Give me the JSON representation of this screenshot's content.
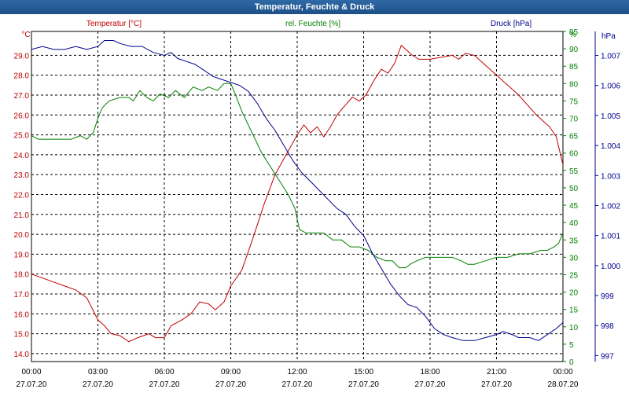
{
  "window": {
    "title": "Temperatur, Feuchte & Druck"
  },
  "chart_data": {
    "type": "line",
    "title": "Temperatur, Feuchte & Druck",
    "grid": true,
    "x_ticks": [
      {
        "time": "00:00",
        "date": "27.07.20"
      },
      {
        "time": "03:00",
        "date": "27.07.20"
      },
      {
        "time": "06:00",
        "date": "27.07.20"
      },
      {
        "time": "09:00",
        "date": "27.07.20"
      },
      {
        "time": "12:00",
        "date": "27.07.20"
      },
      {
        "time": "15:00",
        "date": "27.07.20"
      },
      {
        "time": "18:00",
        "date": "27.07.20"
      },
      {
        "time": "21:00",
        "date": "27.07.20"
      },
      {
        "time": "00:00",
        "date": "28.07.20"
      }
    ],
    "xlim_hours": [
      0,
      24
    ],
    "axes": {
      "temperature": {
        "label": "Temperatur [°C]",
        "unit": "°C",
        "color": "#c00000",
        "ylim": [
          13.6,
          30.2
        ],
        "ticks": [
          "14.0",
          "15.0",
          "16.0",
          "17.0",
          "18.0",
          "19.0",
          "20.0",
          "21.0",
          "22.0",
          "23.0",
          "24.0",
          "25.0",
          "26.0",
          "27.0",
          "28.0",
          "29.0"
        ]
      },
      "humidity": {
        "label": "rel. Feuchte [%]",
        "unit": "%",
        "color": "#008000",
        "ylim": [
          0,
          95
        ],
        "ticks": [
          "0",
          "5",
          "10",
          "15",
          "20",
          "25",
          "30",
          "35",
          "40",
          "45",
          "50",
          "55",
          "60",
          "65",
          "70",
          "75",
          "80",
          "85",
          "90",
          "95"
        ]
      },
      "pressure": {
        "label": "Druck [hPa]",
        "unit": "hPa",
        "color": "#00008b",
        "ylim": [
          996.8,
          1007.8
        ],
        "ticks": [
          "997",
          "998",
          "999",
          "1.000",
          "1.001",
          "1.002",
          "1.003",
          "1.004",
          "1.005",
          "1.006",
          "1.007"
        ]
      }
    },
    "series": [
      {
        "name": "Temperatur [°C]",
        "axis": "temperature",
        "color": "#c00000",
        "points": [
          [
            0,
            18.0
          ],
          [
            0.5,
            17.8
          ],
          [
            1,
            17.6
          ],
          [
            1.5,
            17.4
          ],
          [
            2,
            17.2
          ],
          [
            2.5,
            16.8
          ],
          [
            3,
            15.7
          ],
          [
            3.3,
            15.4
          ],
          [
            3.6,
            15.0
          ],
          [
            4,
            14.9
          ],
          [
            4.4,
            14.6
          ],
          [
            4.8,
            14.8
          ],
          [
            5.3,
            15.0
          ],
          [
            5.6,
            14.8
          ],
          [
            6,
            14.8
          ],
          [
            6.3,
            15.4
          ],
          [
            6.8,
            15.7
          ],
          [
            7.2,
            16.0
          ],
          [
            7.6,
            16.6
          ],
          [
            8,
            16.5
          ],
          [
            8.3,
            16.2
          ],
          [
            8.7,
            16.6
          ],
          [
            9,
            17.4
          ],
          [
            9.5,
            18.2
          ],
          [
            10,
            19.8
          ],
          [
            10.5,
            21.5
          ],
          [
            11,
            23.0
          ],
          [
            11.5,
            24.0
          ],
          [
            12,
            25.0
          ],
          [
            12.3,
            25.5
          ],
          [
            12.6,
            25.1
          ],
          [
            12.9,
            25.4
          ],
          [
            13.2,
            24.9
          ],
          [
            13.5,
            25.4
          ],
          [
            13.8,
            26.0
          ],
          [
            14.1,
            26.4
          ],
          [
            14.5,
            26.9
          ],
          [
            14.8,
            26.7
          ],
          [
            15.1,
            27.0
          ],
          [
            15.5,
            27.8
          ],
          [
            15.8,
            28.3
          ],
          [
            16.1,
            28.1
          ],
          [
            16.4,
            28.6
          ],
          [
            16.7,
            29.5
          ],
          [
            17,
            29.2
          ],
          [
            17.2,
            29.0
          ],
          [
            17.5,
            28.8
          ],
          [
            18,
            28.8
          ],
          [
            18.5,
            28.9
          ],
          [
            19,
            29.0
          ],
          [
            19.3,
            28.8
          ],
          [
            19.6,
            29.1
          ],
          [
            20,
            29.0
          ],
          [
            20.4,
            28.6
          ],
          [
            20.8,
            28.2
          ],
          [
            21.2,
            27.8
          ],
          [
            21.6,
            27.4
          ],
          [
            22,
            27.0
          ],
          [
            22.4,
            26.5
          ],
          [
            22.8,
            26.0
          ],
          [
            23.1,
            25.7
          ],
          [
            23.4,
            25.4
          ],
          [
            23.7,
            24.9
          ],
          [
            24,
            23.5
          ]
        ]
      },
      {
        "name": "rel. Feuchte [%]",
        "axis": "humidity",
        "color": "#008000",
        "points": [
          [
            0,
            65
          ],
          [
            0.3,
            64
          ],
          [
            1,
            64
          ],
          [
            1.8,
            64
          ],
          [
            2.2,
            65
          ],
          [
            2.5,
            64
          ],
          [
            2.8,
            66
          ],
          [
            3,
            70
          ],
          [
            3.2,
            73
          ],
          [
            3.5,
            75
          ],
          [
            4,
            76
          ],
          [
            4.4,
            76
          ],
          [
            4.6,
            75
          ],
          [
            4.9,
            78
          ],
          [
            5.2,
            76
          ],
          [
            5.5,
            75
          ],
          [
            5.8,
            77
          ],
          [
            6.2,
            76
          ],
          [
            6.5,
            78
          ],
          [
            6.9,
            76
          ],
          [
            7.3,
            79
          ],
          [
            7.7,
            78
          ],
          [
            8,
            79
          ],
          [
            8.4,
            78
          ],
          [
            8.7,
            80
          ],
          [
            9,
            80
          ],
          [
            9.2,
            77
          ],
          [
            9.5,
            72
          ],
          [
            9.8,
            68
          ],
          [
            10.1,
            64
          ],
          [
            10.4,
            60
          ],
          [
            10.7,
            57
          ],
          [
            11,
            54
          ],
          [
            11.3,
            51
          ],
          [
            11.6,
            48
          ],
          [
            11.9,
            44
          ],
          [
            12.1,
            38
          ],
          [
            12.4,
            37
          ],
          [
            12.7,
            37
          ],
          [
            13.2,
            37
          ],
          [
            13.6,
            35
          ],
          [
            14,
            35
          ],
          [
            14.4,
            33
          ],
          [
            14.8,
            33
          ],
          [
            15.2,
            32
          ],
          [
            15.6,
            30
          ],
          [
            16,
            29
          ],
          [
            16.3,
            29
          ],
          [
            16.6,
            27
          ],
          [
            16.9,
            27
          ],
          [
            17.1,
            28
          ],
          [
            17.4,
            29
          ],
          [
            17.8,
            30
          ],
          [
            18.2,
            30
          ],
          [
            18.6,
            30
          ],
          [
            19,
            30
          ],
          [
            19.4,
            29
          ],
          [
            19.7,
            28
          ],
          [
            20,
            28
          ],
          [
            20.5,
            29
          ],
          [
            21,
            30
          ],
          [
            21.5,
            30
          ],
          [
            22,
            31
          ],
          [
            22.5,
            31
          ],
          [
            23,
            32
          ],
          [
            23.3,
            32
          ],
          [
            23.6,
            33
          ],
          [
            23.8,
            34
          ],
          [
            24,
            37
          ]
        ]
      },
      {
        "name": "Druck [hPa]",
        "axis": "pressure",
        "color": "#00008b",
        "points": [
          [
            0,
            1007.2
          ],
          [
            0.5,
            1007.3
          ],
          [
            1,
            1007.2
          ],
          [
            1.5,
            1007.2
          ],
          [
            2,
            1007.3
          ],
          [
            2.5,
            1007.2
          ],
          [
            3,
            1007.3
          ],
          [
            3.3,
            1007.5
          ],
          [
            3.7,
            1007.5
          ],
          [
            4,
            1007.4
          ],
          [
            4.5,
            1007.3
          ],
          [
            5,
            1007.3
          ],
          [
            5.5,
            1007.1
          ],
          [
            6,
            1007.0
          ],
          [
            6.3,
            1007.1
          ],
          [
            6.6,
            1006.9
          ],
          [
            7,
            1006.8
          ],
          [
            7.4,
            1006.7
          ],
          [
            7.8,
            1006.5
          ],
          [
            8.2,
            1006.3
          ],
          [
            8.6,
            1006.2
          ],
          [
            9,
            1006.1
          ],
          [
            9.4,
            1006.0
          ],
          [
            9.8,
            1005.8
          ],
          [
            10.2,
            1005.4
          ],
          [
            10.6,
            1004.9
          ],
          [
            11,
            1004.5
          ],
          [
            11.4,
            1004.0
          ],
          [
            11.8,
            1003.5
          ],
          [
            12.2,
            1003.1
          ],
          [
            12.6,
            1002.8
          ],
          [
            13,
            1002.5
          ],
          [
            13.4,
            1002.2
          ],
          [
            13.8,
            1001.9
          ],
          [
            14.2,
            1001.7
          ],
          [
            14.6,
            1001.3
          ],
          [
            15,
            1001.0
          ],
          [
            15.4,
            1000.4
          ],
          [
            15.8,
            999.9
          ],
          [
            16.2,
            999.4
          ],
          [
            16.6,
            999.0
          ],
          [
            17,
            998.7
          ],
          [
            17.4,
            998.6
          ],
          [
            17.8,
            998.3
          ],
          [
            18.2,
            997.9
          ],
          [
            18.6,
            997.7
          ],
          [
            19,
            997.6
          ],
          [
            19.5,
            997.5
          ],
          [
            20,
            997.5
          ],
          [
            20.5,
            997.6
          ],
          [
            21,
            997.7
          ],
          [
            21.3,
            997.8
          ],
          [
            21.7,
            997.7
          ],
          [
            22,
            997.6
          ],
          [
            22.5,
            997.6
          ],
          [
            22.9,
            997.5
          ],
          [
            23.3,
            997.7
          ],
          [
            23.7,
            997.9
          ],
          [
            24,
            998.1
          ]
        ]
      }
    ]
  }
}
